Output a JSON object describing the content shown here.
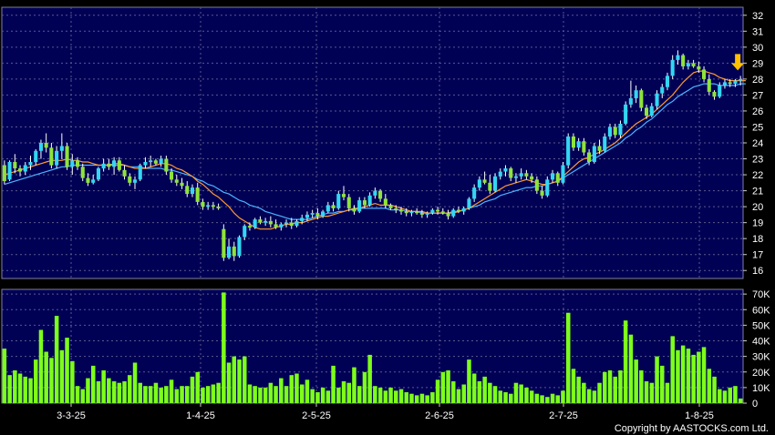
{
  "chart_data": [
    {
      "type": "candlestick",
      "panel": "price",
      "ylim": [
        15.5,
        32.5
      ],
      "yticks": [
        16,
        17,
        18,
        19,
        20,
        21,
        22,
        23,
        24,
        25,
        26,
        27,
        28,
        29,
        30,
        31,
        32
      ],
      "grid": true,
      "colors": {
        "background": "#000055",
        "up_candle": "#33d6f2",
        "down_candle": "#8fe33a",
        "wick": "#ffffff",
        "ma_short": "#ff9a2e",
        "ma_long": "#4cb4ff",
        "marker": "#ffc000"
      },
      "marker_icon": "down-arrow-icon",
      "candles": [
        [
          22.6,
          22.9,
          21.4,
          21.6
        ],
        [
          21.7,
          22.9,
          21.6,
          22.8
        ],
        [
          22.8,
          23.3,
          22.1,
          22.4
        ],
        [
          22.4,
          22.6,
          21.9,
          22.2
        ],
        [
          22.2,
          22.8,
          22.0,
          22.6
        ],
        [
          22.6,
          23.2,
          22.3,
          22.8
        ],
        [
          22.8,
          23.6,
          22.6,
          23.5
        ],
        [
          23.5,
          24.2,
          23.0,
          24.0
        ],
        [
          24.0,
          24.6,
          23.4,
          23.7
        ],
        [
          23.7,
          24.0,
          22.4,
          22.6
        ],
        [
          22.6,
          23.8,
          22.4,
          23.5
        ],
        [
          23.5,
          24.6,
          23.0,
          23.8
        ],
        [
          23.8,
          24.0,
          22.3,
          22.5
        ],
        [
          22.5,
          23.3,
          22.0,
          22.9
        ],
        [
          22.9,
          23.1,
          22.3,
          22.5
        ],
        [
          22.5,
          22.7,
          21.6,
          21.8
        ],
        [
          21.8,
          22.1,
          21.3,
          21.5
        ],
        [
          21.5,
          22.0,
          21.4,
          21.7
        ],
        [
          21.7,
          22.5,
          21.6,
          22.4
        ],
        [
          22.4,
          23.0,
          22.2,
          22.7
        ],
        [
          22.7,
          23.0,
          22.3,
          22.5
        ],
        [
          22.5,
          23.1,
          22.0,
          22.9
        ],
        [
          22.9,
          23.1,
          22.2,
          22.3
        ],
        [
          22.3,
          22.6,
          21.7,
          21.9
        ],
        [
          21.9,
          22.1,
          21.3,
          21.5
        ],
        [
          21.5,
          21.9,
          21.1,
          21.7
        ],
        [
          21.7,
          22.7,
          21.6,
          22.6
        ],
        [
          22.6,
          23.1,
          22.4,
          22.8
        ],
        [
          22.8,
          23.2,
          22.5,
          22.9
        ],
        [
          22.9,
          23.0,
          22.6,
          22.7
        ],
        [
          22.7,
          23.2,
          22.5,
          23.0
        ],
        [
          23.0,
          23.2,
          22.0,
          22.2
        ],
        [
          22.2,
          22.4,
          21.5,
          21.7
        ],
        [
          21.7,
          22.0,
          21.3,
          21.5
        ],
        [
          21.5,
          21.8,
          21.1,
          21.3
        ],
        [
          21.3,
          21.6,
          20.6,
          20.8
        ],
        [
          20.8,
          21.4,
          20.6,
          21.2
        ],
        [
          21.2,
          21.5,
          20.1,
          20.3
        ],
        [
          20.3,
          20.5,
          19.8,
          20.0
        ],
        [
          20.0,
          20.3,
          19.8,
          20.1
        ],
        [
          20.1,
          20.3,
          19.8,
          20.0
        ],
        [
          20.0,
          20.2,
          19.8,
          19.9
        ],
        [
          18.6,
          18.9,
          16.6,
          16.8
        ],
        [
          16.8,
          18.0,
          16.7,
          17.5
        ],
        [
          17.5,
          17.8,
          16.6,
          16.9
        ],
        [
          16.9,
          18.2,
          16.8,
          18.1
        ],
        [
          18.1,
          18.9,
          17.9,
          18.8
        ],
        [
          18.8,
          19.0,
          18.5,
          18.7
        ],
        [
          18.7,
          19.3,
          18.6,
          19.2
        ],
        [
          19.2,
          19.4,
          18.9,
          19.0
        ],
        [
          19.0,
          19.3,
          18.8,
          19.1
        ],
        [
          19.1,
          19.4,
          18.7,
          18.9
        ],
        [
          18.9,
          19.2,
          18.6,
          18.7
        ],
        [
          18.7,
          19.0,
          18.5,
          18.9
        ],
        [
          18.9,
          19.2,
          18.7,
          19.0
        ],
        [
          19.0,
          19.3,
          18.6,
          18.8
        ],
        [
          18.8,
          19.2,
          18.7,
          19.1
        ],
        [
          19.1,
          19.5,
          18.9,
          19.3
        ],
        [
          19.3,
          19.7,
          19.1,
          19.5
        ],
        [
          19.5,
          19.8,
          19.3,
          19.6
        ],
        [
          19.6,
          19.9,
          19.2,
          19.4
        ],
        [
          19.4,
          19.8,
          19.3,
          19.7
        ],
        [
          19.7,
          20.3,
          19.6,
          20.1
        ],
        [
          20.1,
          20.3,
          19.7,
          19.9
        ],
        [
          19.9,
          21.0,
          19.8,
          20.8
        ],
        [
          20.8,
          21.3,
          20.4,
          20.6
        ],
        [
          20.6,
          20.8,
          19.7,
          19.9
        ],
        [
          19.9,
          20.1,
          19.5,
          19.7
        ],
        [
          19.7,
          20.6,
          19.6,
          20.4
        ],
        [
          20.4,
          20.6,
          19.9,
          20.1
        ],
        [
          20.1,
          20.9,
          20.0,
          20.7
        ],
        [
          20.7,
          21.2,
          20.5,
          21.0
        ],
        [
          21.0,
          21.1,
          20.3,
          20.5
        ],
        [
          20.5,
          20.8,
          19.9,
          20.1
        ],
        [
          20.1,
          20.2,
          19.8,
          19.9
        ],
        [
          19.9,
          20.1,
          19.6,
          19.8
        ],
        [
          19.8,
          20.0,
          19.5,
          19.7
        ],
        [
          19.7,
          19.9,
          19.4,
          19.6
        ],
        [
          19.6,
          19.8,
          19.4,
          19.7
        ],
        [
          19.7,
          19.9,
          19.5,
          19.6
        ],
        [
          19.6,
          19.8,
          19.3,
          19.5
        ],
        [
          19.5,
          19.7,
          19.3,
          19.6
        ],
        [
          19.6,
          19.9,
          19.5,
          19.8
        ],
        [
          19.8,
          20.0,
          19.5,
          19.7
        ],
        [
          19.7,
          19.9,
          19.5,
          19.6
        ],
        [
          19.6,
          19.8,
          19.2,
          19.4
        ],
        [
          19.4,
          19.9,
          19.3,
          19.8
        ],
        [
          19.8,
          20.0,
          19.6,
          19.7
        ],
        [
          19.7,
          20.0,
          19.5,
          19.9
        ],
        [
          19.9,
          20.6,
          19.8,
          20.5
        ],
        [
          20.5,
          21.4,
          20.3,
          21.2
        ],
        [
          21.2,
          21.9,
          21.0,
          21.7
        ],
        [
          21.7,
          22.2,
          21.4,
          21.5
        ],
        [
          21.5,
          22.0,
          20.8,
          21.0
        ],
        [
          21.0,
          22.1,
          20.9,
          21.9
        ],
        [
          21.9,
          22.4,
          21.7,
          22.2
        ],
        [
          22.2,
          22.6,
          21.9,
          22.4
        ],
        [
          22.4,
          22.5,
          21.6,
          21.8
        ],
        [
          21.8,
          22.1,
          21.5,
          21.9
        ],
        [
          21.9,
          22.4,
          21.7,
          22.1
        ],
        [
          22.1,
          22.3,
          21.7,
          21.9
        ],
        [
          21.9,
          22.1,
          21.5,
          21.7
        ],
        [
          21.7,
          21.9,
          20.8,
          21.0
        ],
        [
          21.0,
          21.3,
          20.5,
          20.7
        ],
        [
          20.7,
          21.9,
          20.6,
          21.7
        ],
        [
          21.7,
          22.3,
          21.5,
          22.1
        ],
        [
          22.1,
          22.2,
          21.3,
          21.5
        ],
        [
          21.5,
          22.8,
          21.4,
          22.6
        ],
        [
          22.6,
          24.6,
          22.4,
          24.4
        ],
        [
          24.4,
          24.6,
          23.5,
          23.7
        ],
        [
          23.7,
          24.3,
          23.5,
          24.1
        ],
        [
          24.1,
          24.3,
          23.2,
          23.4
        ],
        [
          23.4,
          23.6,
          22.6,
          22.8
        ],
        [
          22.8,
          24.0,
          22.7,
          23.8
        ],
        [
          23.8,
          24.2,
          23.3,
          23.5
        ],
        [
          23.5,
          24.6,
          23.4,
          24.4
        ],
        [
          24.4,
          25.2,
          24.2,
          25.0
        ],
        [
          25.0,
          25.2,
          24.3,
          24.5
        ],
        [
          24.5,
          25.4,
          24.3,
          25.2
        ],
        [
          25.2,
          26.6,
          25.1,
          26.4
        ],
        [
          26.4,
          27.9,
          26.2,
          26.8
        ],
        [
          26.8,
          27.6,
          26.5,
          27.3
        ],
        [
          27.3,
          27.4,
          26.0,
          26.2
        ],
        [
          26.2,
          26.4,
          25.5,
          25.7
        ],
        [
          25.7,
          26.5,
          25.6,
          26.3
        ],
        [
          26.3,
          27.3,
          26.1,
          27.1
        ],
        [
          27.1,
          27.7,
          26.8,
          27.5
        ],
        [
          27.5,
          28.4,
          27.3,
          28.2
        ],
        [
          28.2,
          29.5,
          28.0,
          29.2
        ],
        [
          29.2,
          29.8,
          28.9,
          29.5
        ],
        [
          29.5,
          29.6,
          28.6,
          28.8
        ],
        [
          28.8,
          29.2,
          28.6,
          29.0
        ],
        [
          29.0,
          29.2,
          28.7,
          28.8
        ],
        [
          28.8,
          29.1,
          28.4,
          28.6
        ],
        [
          28.6,
          28.8,
          27.8,
          28.0
        ],
        [
          28.0,
          28.3,
          27.0,
          27.2
        ],
        [
          27.2,
          27.3,
          26.7,
          26.9
        ],
        [
          26.9,
          27.8,
          26.8,
          27.6
        ],
        [
          27.6,
          28.0,
          27.4,
          27.8
        ],
        [
          27.8,
          28.0,
          27.5,
          27.7
        ],
        [
          27.7,
          28.0,
          27.5,
          27.9
        ],
        [
          27.9,
          28.2,
          27.6,
          28.0
        ]
      ],
      "ma_short": [
        22.0,
        22.1,
        22.2,
        22.3,
        22.4,
        22.5,
        22.6,
        22.7,
        22.8,
        22.9,
        22.9,
        22.9,
        23.0,
        22.9,
        22.9,
        22.8,
        22.8,
        22.7,
        22.6,
        22.6,
        22.6,
        22.7,
        22.7,
        22.6,
        22.5,
        22.4,
        22.4,
        22.4,
        22.5,
        22.6,
        22.7,
        22.7,
        22.6,
        22.4,
        22.3,
        22.1,
        21.9,
        21.6,
        21.4,
        21.1,
        20.8,
        20.6,
        20.3,
        20.0,
        19.6,
        19.3,
        19.1,
        18.9,
        18.7,
        18.6,
        18.6,
        18.6,
        18.7,
        18.8,
        18.9,
        18.9,
        19.0,
        19.0,
        19.1,
        19.2,
        19.3,
        19.4,
        19.4,
        19.5,
        19.6,
        19.7,
        19.8,
        19.9,
        19.9,
        20.0,
        20.1,
        20.2,
        20.1,
        20.1,
        20.1,
        20.0,
        19.9,
        19.8,
        19.7,
        19.7,
        19.7,
        19.6,
        19.6,
        19.6,
        19.6,
        19.6,
        19.6,
        19.7,
        19.8,
        19.9,
        20.1,
        20.3,
        20.5,
        20.7,
        20.9,
        21.1,
        21.3,
        21.4,
        21.5,
        21.6,
        21.7,
        21.6,
        21.5,
        21.4,
        21.4,
        21.5,
        21.6,
        21.9,
        22.2,
        22.5,
        22.8,
        23.0,
        23.1,
        23.3,
        23.4,
        23.6,
        23.8,
        24.0,
        24.3,
        24.6,
        24.9,
        25.2,
        25.4,
        25.6,
        25.8,
        26.1,
        26.4,
        26.7,
        27.0,
        27.4,
        27.8,
        28.1,
        28.4,
        28.5,
        28.5,
        28.4,
        28.3,
        28.1,
        28.0,
        27.9,
        27.9,
        27.9,
        27.9
      ],
      "ma_long": [
        21.4,
        21.5,
        21.6,
        21.7,
        21.8,
        21.9,
        22.0,
        22.1,
        22.2,
        22.3,
        22.4,
        22.5,
        22.5,
        22.6,
        22.6,
        22.6,
        22.6,
        22.6,
        22.6,
        22.6,
        22.6,
        22.6,
        22.6,
        22.6,
        22.5,
        22.5,
        22.5,
        22.4,
        22.4,
        22.4,
        22.4,
        22.3,
        22.3,
        22.2,
        22.1,
        22.0,
        21.9,
        21.7,
        21.6,
        21.4,
        21.3,
        21.1,
        20.9,
        20.8,
        20.6,
        20.4,
        20.3,
        20.1,
        20.0,
        19.9,
        19.7,
        19.6,
        19.5,
        19.4,
        19.3,
        19.2,
        19.2,
        19.2,
        19.2,
        19.3,
        19.4,
        19.5,
        19.6,
        19.6,
        19.7,
        19.7,
        19.8,
        19.8,
        19.9,
        19.9,
        19.9,
        19.9,
        19.9,
        19.9,
        19.8,
        19.8,
        19.8,
        19.7,
        19.7,
        19.7,
        19.6,
        19.6,
        19.6,
        19.6,
        19.6,
        19.6,
        19.7,
        19.7,
        19.8,
        19.9,
        20.0,
        20.1,
        20.3,
        20.4,
        20.5,
        20.7,
        20.8,
        20.9,
        21.0,
        21.1,
        21.2,
        21.2,
        21.3,
        21.3,
        21.4,
        21.5,
        21.6,
        21.8,
        22.0,
        22.2,
        22.4,
        22.6,
        22.8,
        23.0,
        23.2,
        23.4,
        23.6,
        23.8,
        24.0,
        24.3,
        24.5,
        24.8,
        25.0,
        25.3,
        25.5,
        25.8,
        26.1,
        26.4,
        26.6,
        26.9,
        27.1,
        27.3,
        27.5,
        27.6,
        27.7,
        27.7,
        27.7,
        27.6,
        27.6,
        27.6,
        27.6,
        27.7,
        27.7
      ]
    },
    {
      "type": "bar",
      "panel": "volume",
      "ylim": [
        0,
        73000
      ],
      "yticks": [
        0,
        10000,
        20000,
        30000,
        40000,
        50000,
        60000,
        70000
      ],
      "ytick_labels": [
        "0",
        "10K",
        "20K",
        "30K",
        "40K",
        "50K",
        "60K",
        "70K"
      ],
      "bar_color": "#7dff1a",
      "values": [
        35000,
        18000,
        21000,
        19000,
        17000,
        16000,
        28000,
        47000,
        33000,
        29000,
        56000,
        34000,
        42000,
        27000,
        11000,
        9000,
        16000,
        24000,
        14000,
        21000,
        16000,
        14000,
        13000,
        14000,
        18000,
        26000,
        13000,
        11000,
        11000,
        13000,
        10000,
        11000,
        15000,
        9000,
        11000,
        11000,
        17000,
        20000,
        10000,
        11000,
        12000,
        13000,
        71000,
        26000,
        30000,
        28000,
        30000,
        12000,
        11000,
        10000,
        10000,
        13000,
        11000,
        16000,
        11000,
        18000,
        19000,
        12000,
        15000,
        9000,
        7000,
        10000,
        8000,
        24000,
        10000,
        14000,
        13000,
        23000,
        11000,
        20000,
        31000,
        11000,
        10000,
        8000,
        10000,
        8000,
        9000,
        7000,
        6000,
        5000,
        6000,
        5000,
        7000,
        15000,
        20000,
        21000,
        14000,
        9000,
        12000,
        28000,
        19000,
        14000,
        17000,
        13000,
        11000,
        8000,
        7000,
        6000,
        13000,
        12000,
        10000,
        8000,
        6000,
        5000,
        4000,
        6000,
        5000,
        8000,
        58000,
        22000,
        17000,
        13000,
        9000,
        8000,
        13000,
        20000,
        21000,
        17000,
        21000,
        53000,
        44000,
        28000,
        21000,
        14000,
        13000,
        30000,
        24000,
        13000,
        43000,
        34000,
        37000,
        35000,
        31000,
        33000,
        36000,
        22000,
        17000,
        9000,
        8000,
        10000,
        11000,
        3000
      ]
    },
    {
      "type": "axis",
      "x_tick_labels": [
        "3-3-25",
        "1-4-25",
        "2-5-25",
        "2-6-25",
        "2-7-25",
        "1-8-25"
      ]
    }
  ],
  "footer": {
    "copyright": "Copyright by AASTOCKS.com Ltd."
  }
}
